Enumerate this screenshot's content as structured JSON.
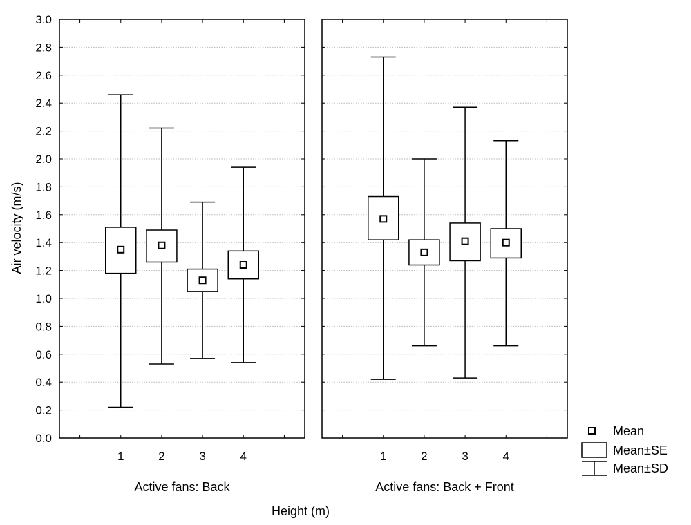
{
  "chart_data": {
    "type": "box",
    "ylabel": "Air velocity (m/s)",
    "xlabel": "Height (m)",
    "ylim": [
      0,
      3.0
    ],
    "yticks": [
      "0.0",
      "0.2",
      "0.4",
      "0.6",
      "0.8",
      "1.0",
      "1.2",
      "1.4",
      "1.6",
      "1.8",
      "2.0",
      "2.2",
      "2.4",
      "2.6",
      "2.8",
      "3.0"
    ],
    "grid": true,
    "legend_position": "bottom-right",
    "legend": [
      "Mean",
      "Mean±SE",
      "Mean±SD"
    ],
    "panels": [
      {
        "title": "Active fans: Back",
        "categories": [
          "1",
          "2",
          "3",
          "4"
        ],
        "mean": [
          1.35,
          1.38,
          1.13,
          1.24
        ],
        "se_low": [
          1.18,
          1.26,
          1.05,
          1.14
        ],
        "se_high": [
          1.51,
          1.49,
          1.21,
          1.34
        ],
        "sd_low": [
          0.22,
          0.53,
          0.57,
          0.54
        ],
        "sd_high": [
          2.46,
          2.22,
          1.69,
          1.94
        ]
      },
      {
        "title": "Active fans: Back + Front",
        "categories": [
          "1",
          "2",
          "3",
          "4"
        ],
        "mean": [
          1.57,
          1.33,
          1.41,
          1.4
        ],
        "se_low": [
          1.42,
          1.24,
          1.27,
          1.29
        ],
        "se_high": [
          1.73,
          1.42,
          1.54,
          1.5
        ],
        "sd_low": [
          0.42,
          0.66,
          0.43,
          0.66
        ],
        "sd_high": [
          2.73,
          2.0,
          2.37,
          2.13
        ]
      }
    ]
  }
}
